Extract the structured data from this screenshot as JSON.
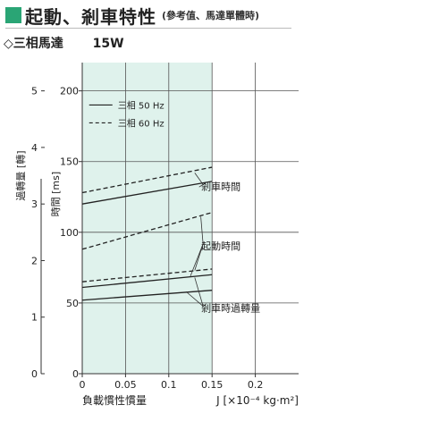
{
  "header": {
    "title": "起動、剎車特性",
    "subtitle": "(參考值、馬達單體時)",
    "accent_color": "#2aa575"
  },
  "subheader": {
    "model": "◇三相馬達",
    "power": "15W"
  },
  "chart_data": {
    "type": "line",
    "x_label_left": "負載慣性慣量",
    "x_label_right": "J [×10⁻⁴ kg·m²]",
    "x_ticks": [
      "0",
      "0.05",
      "0.1",
      "0.15",
      "0.2"
    ],
    "xlim": [
      0,
      0.25
    ],
    "y_time_label": "時間 [ms]",
    "y_time_ticks": [
      "0",
      "50",
      "100",
      "150",
      "200"
    ],
    "ylim_time": [
      0,
      220
    ],
    "y_overrun_label": "過轉量 [轉]",
    "y_overrun_ticks": [
      "0",
      "1",
      "2",
      "3",
      "4",
      "5"
    ],
    "ylim_overrun": [
      0,
      5.5
    ],
    "shaded_region": [
      0,
      0.15
    ],
    "shade_color": "#dff2ec",
    "grid": true,
    "legend": {
      "position": "top-left",
      "items": [
        {
          "name": "三相 50 Hz",
          "style": "solid"
        },
        {
          "name": "三相 60 Hz",
          "style": "dashed"
        }
      ]
    },
    "series": [
      {
        "group": "剎車時間",
        "name": "三相 50 Hz",
        "style": "solid",
        "x": [
          0,
          0.15
        ],
        "y": [
          120,
          136
        ]
      },
      {
        "group": "剎車時間",
        "name": "三相 60 Hz",
        "style": "dashed",
        "x": [
          0,
          0.15
        ],
        "y": [
          128,
          146
        ]
      },
      {
        "group": "起動時間",
        "name": "三相 60 Hz",
        "style": "dashed",
        "x": [
          0,
          0.15
        ],
        "y": [
          88,
          114
        ]
      },
      {
        "group": "剎車時過轉量",
        "name": "三相 60 Hz",
        "style": "dashed",
        "x": [
          0,
          0.15
        ],
        "y": [
          65,
          74
        ]
      },
      {
        "group": "剎車時過轉量",
        "name": "三相 50 Hz",
        "style": "solid",
        "x": [
          0,
          0.15
        ],
        "y": [
          61,
          70
        ]
      },
      {
        "group": "剎車時過轉量",
        "name": "三相 50 Hz",
        "style": "solid",
        "x": [
          0,
          0.15
        ],
        "y": [
          52,
          59
        ]
      }
    ],
    "annotations": [
      {
        "text": "剎車時間",
        "points_to": [
          [
            0.13,
            142
          ],
          [
            0.135,
            132
          ]
        ]
      },
      {
        "text": "起動時間",
        "points_to": [
          [
            0.137,
            111
          ],
          [
            0.13,
            73
          ],
          [
            0.125,
            69
          ]
        ]
      },
      {
        "text": "剎車時過轉量",
        "points_to": [
          [
            0.13,
            68
          ],
          [
            0.12,
            58
          ]
        ]
      }
    ]
  }
}
